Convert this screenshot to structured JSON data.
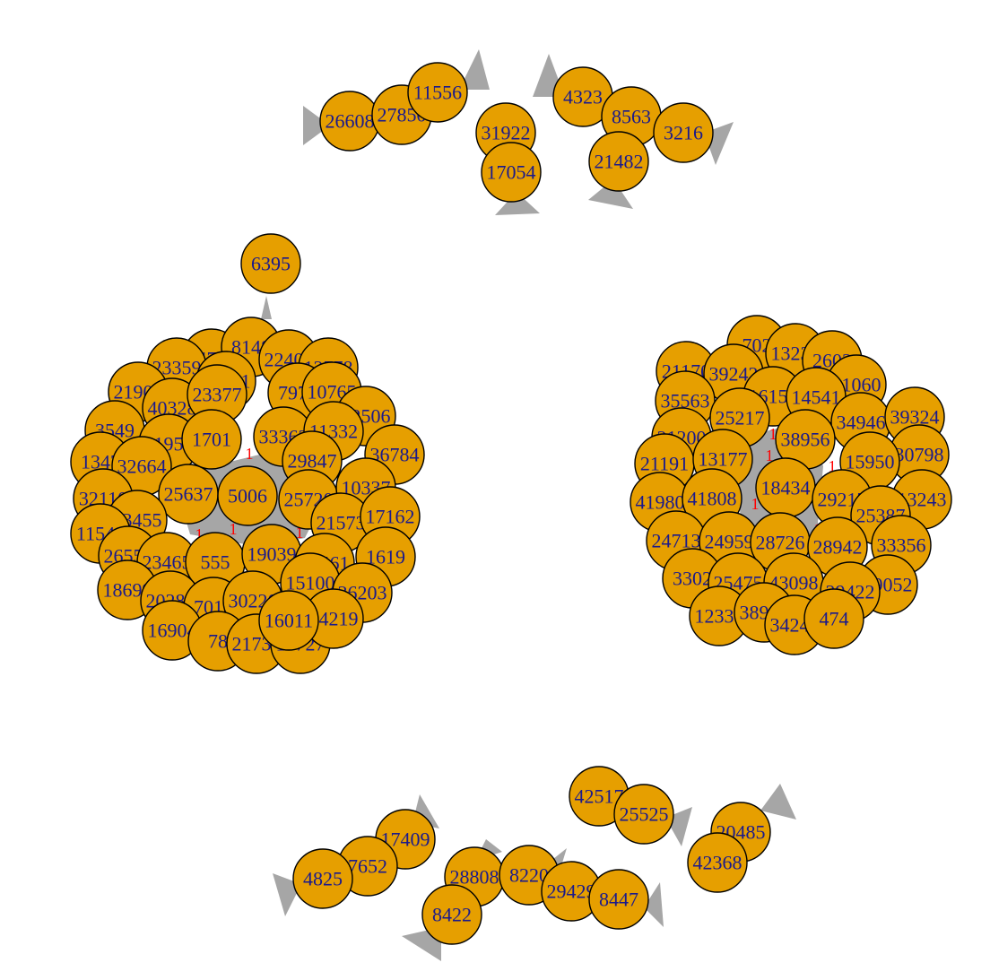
{
  "colors": {
    "node_fill": "#E69F00",
    "node_border": "#000000",
    "label": "#1a1a8c",
    "edge": "#a6a6a6",
    "edge_label": "#ff0000",
    "background": "#ffffff"
  },
  "graph": {
    "top_pairs": [
      {
        "nodes": [
          "26608",
          "27850",
          "11556"
        ]
      },
      {
        "nodes": [
          "31922",
          "17054"
        ]
      },
      {
        "nodes": [
          "4323",
          "8563",
          "3216",
          "21482"
        ]
      }
    ],
    "left_hub": {
      "outer": "6395",
      "nodes": [
        "14788",
        "8148",
        "22402",
        "12778",
        "23359",
        "21902",
        "18581",
        "40328",
        "23377",
        "7975",
        "10765",
        "22506",
        "3549",
        "21951",
        "1701",
        "33362",
        "11332",
        "36784",
        "1347",
        "32664",
        "29847",
        "25637",
        "5006",
        "25720",
        "10337",
        "32110",
        "33455",
        "21573",
        "17162",
        "11544",
        "26557",
        "23465",
        "555",
        "19039",
        "32461",
        "1619",
        "18699",
        "15100",
        "20283",
        "7018",
        "30220",
        "36203",
        "16904",
        "78",
        "21736",
        "18727",
        "14219",
        "16011"
      ]
    },
    "right_hub": {
      "nodes": [
        "702",
        "13237",
        "2603",
        "21170",
        "39242",
        "41060",
        "35563",
        "16150",
        "14541",
        "25217",
        "34946",
        "39324",
        "21200",
        "38956",
        "30798",
        "21191",
        "13177",
        "15950",
        "41980",
        "41808",
        "18434",
        "29217",
        "13243",
        "25387",
        "24713",
        "24959",
        "28726",
        "28942",
        "33356",
        "3302",
        "25475",
        "43098",
        "39052",
        "29422",
        "12338",
        "38908",
        "34244",
        "474"
      ]
    },
    "bottom_groups": [
      {
        "nodes": [
          "42517",
          "25525"
        ]
      },
      {
        "nodes": [
          "20485",
          "42368"
        ]
      },
      {
        "nodes": [
          "17409",
          "7652",
          "4825"
        ]
      },
      {
        "nodes": [
          "28808",
          "8220",
          "29429",
          "8447",
          "8422"
        ]
      }
    ],
    "edge_label_value": "1"
  }
}
